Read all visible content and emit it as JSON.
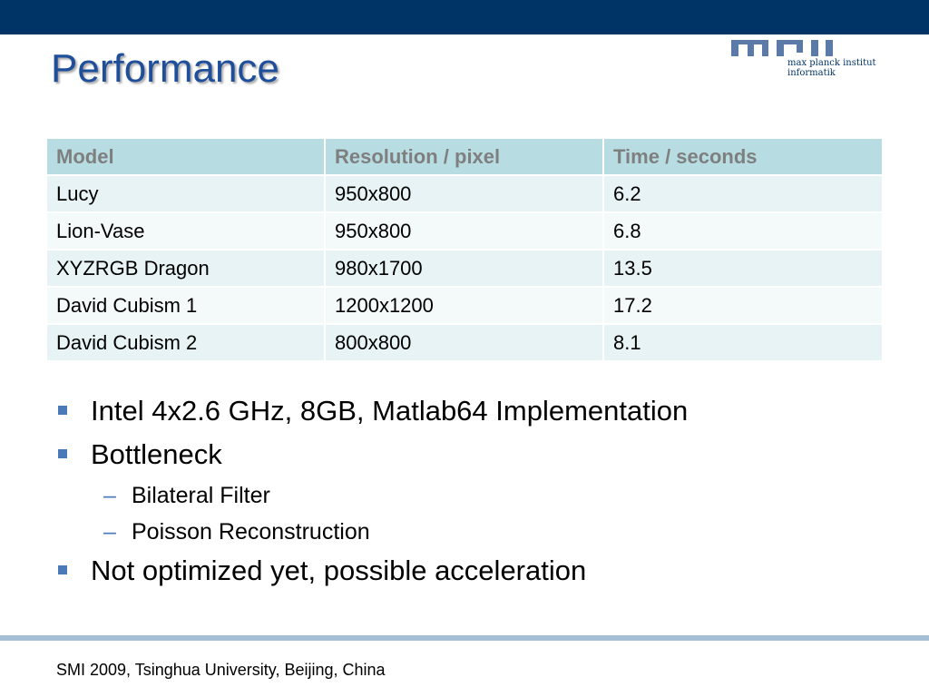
{
  "slide": {
    "title": "Performance",
    "footer": "SMI 2009, Tsinghua University, Beijing, China"
  },
  "logo": {
    "wordmark": "mpii",
    "text_line1": "max planck institut",
    "text_line2": "informatik"
  },
  "table": {
    "headers": [
      "Model",
      "Resolution / pixel",
      "Time / seconds"
    ],
    "rows": [
      [
        "Lucy",
        "950x800",
        "6.2"
      ],
      [
        "Lion-Vase",
        "950x800",
        "6.8"
      ],
      [
        "XYZRGB Dragon",
        "980x1700",
        "13.5"
      ],
      [
        "David Cubism 1",
        "1200x1200",
        "17.2"
      ],
      [
        "David Cubism 2",
        "800x800",
        "8.1"
      ]
    ]
  },
  "bullets": [
    {
      "text": "Intel 4x2.6 GHz, 8GB, Matlab64 Implementation"
    },
    {
      "text": "Bottleneck",
      "sub": [
        "Bilateral Filter",
        "Poisson Reconstruction"
      ]
    },
    {
      "text": "Not optimized yet, possible acceleration"
    }
  ],
  "colors": {
    "top_bar": "#003366",
    "title": "#1f4e9a",
    "table_header_bg": "#b7dde3",
    "table_row_odd": "#e8f3f5",
    "table_row_even": "#f4f9fa",
    "bullet_marker": "#4a7ab8",
    "bottom_rule": "#a4bfd6"
  }
}
